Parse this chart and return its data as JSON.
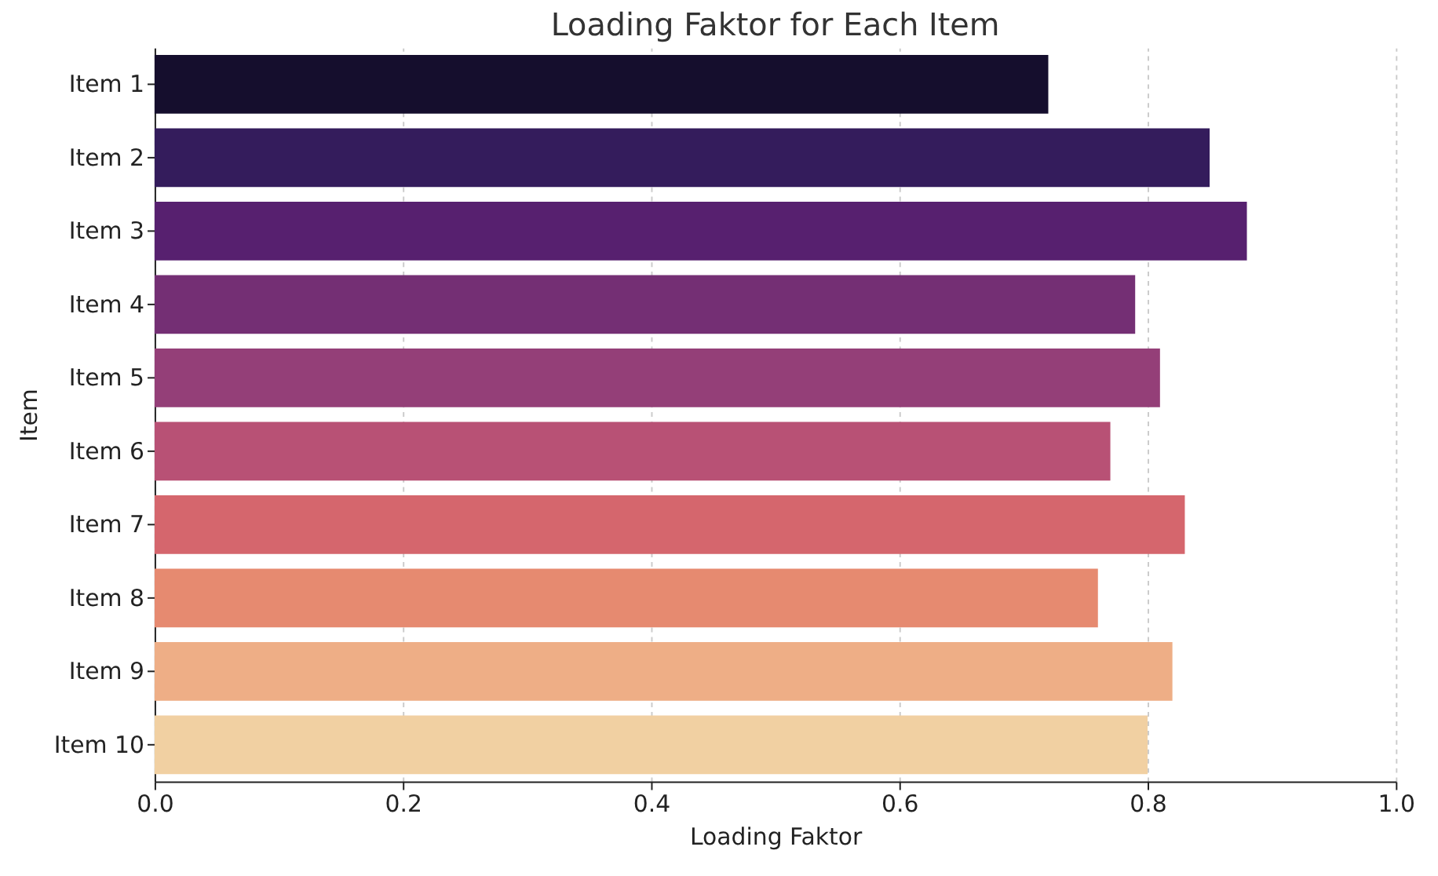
{
  "chart_data": {
    "type": "bar",
    "orientation": "horizontal",
    "title": "Loading Faktor for Each Item",
    "xlabel": "Loading Faktor",
    "ylabel": "Item",
    "categories": [
      "Item 1",
      "Item 2",
      "Item 3",
      "Item 4",
      "Item 5",
      "Item 6",
      "Item 7",
      "Item 8",
      "Item 9",
      "Item 10"
    ],
    "values": [
      0.72,
      0.85,
      0.88,
      0.79,
      0.81,
      0.77,
      0.83,
      0.76,
      0.82,
      0.8
    ],
    "colors": [
      "#150e2d",
      "#341c5c",
      "#57206f",
      "#742f74",
      "#943f78",
      "#b85175",
      "#d5666d",
      "#e68a70",
      "#eeae86",
      "#f1d0a2"
    ],
    "xlim": [
      0,
      1
    ],
    "xticks": [
      {
        "value": 0,
        "label": "0.0"
      },
      0.2,
      0.4,
      0.6,
      0.8,
      {
        "value": 1,
        "label": "1.0"
      }
    ],
    "grid": "x",
    "legend": false
  }
}
